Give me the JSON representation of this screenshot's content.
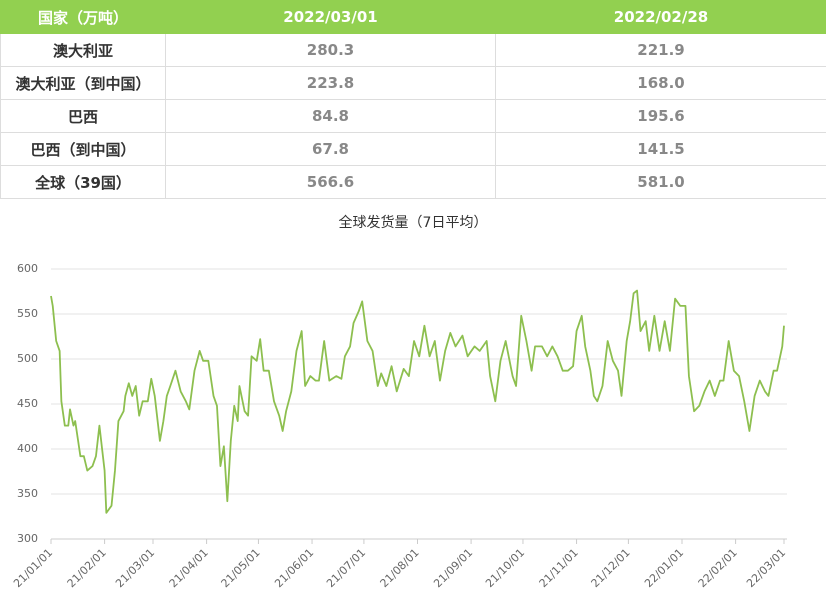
{
  "table": {
    "header": [
      "国家（万吨）",
      "2022/03/01",
      "2022/02/28"
    ],
    "rows": [
      [
        "澳大利亚",
        "280.3",
        "221.9"
      ],
      [
        "澳大利亚（到中国）",
        "223.8",
        "168.0"
      ],
      [
        "巴西",
        "84.8",
        "195.6"
      ],
      [
        "巴西（到中国）",
        "67.8",
        "141.5"
      ],
      [
        "全球（39国）",
        "566.6",
        "581.0"
      ]
    ]
  },
  "chart_data": {
    "type": "line",
    "title": "全球发货量（7日平均）",
    "ylim": [
      300,
      600
    ],
    "yticks": [
      300,
      350,
      400,
      450,
      500,
      550,
      600
    ],
    "grid": true,
    "xlim": [
      "21/01/01",
      "22/03/01"
    ],
    "xticks": [
      "21/01/01",
      "21/02/01",
      "21/03/01",
      "21/04/01",
      "21/05/01",
      "21/06/01",
      "21/07/01",
      "21/08/01",
      "21/09/01",
      "21/10/01",
      "21/11/01",
      "21/12/01",
      "22/01/01",
      "22/02/01",
      "22/03/01"
    ],
    "x": [
      "21/01/01",
      "21/01/02",
      "21/01/04",
      "21/01/06",
      "21/01/07",
      "21/01/09",
      "21/01/11",
      "21/01/12",
      "21/01/14",
      "21/01/15",
      "21/01/18",
      "21/01/20",
      "21/01/22",
      "21/01/25",
      "21/01/27",
      "21/01/29",
      "21/02/01",
      "21/02/02",
      "21/02/05",
      "21/02/07",
      "21/02/09",
      "21/02/12",
      "21/02/13",
      "21/02/15",
      "21/02/17",
      "21/02/19",
      "21/02/21",
      "21/02/23",
      "21/02/26",
      "21/02/28",
      "21/03/02",
      "21/03/05",
      "21/03/07",
      "21/03/09",
      "21/03/11",
      "21/03/14",
      "21/03/17",
      "21/03/20",
      "21/03/22",
      "21/03/25",
      "21/03/28",
      "21/03/30",
      "21/04/02",
      "21/04/05",
      "21/04/07",
      "21/04/09",
      "21/04/11",
      "21/04/13",
      "21/04/15",
      "21/04/17",
      "21/04/19",
      "21/04/20",
      "21/04/23",
      "21/04/25",
      "21/04/27",
      "21/04/30",
      "21/05/02",
      "21/05/04",
      "21/05/07",
      "21/05/10",
      "21/05/13",
      "21/05/15",
      "21/05/17",
      "21/05/20",
      "21/05/23",
      "21/05/26",
      "21/05/28",
      "21/05/31",
      "21/06/03",
      "21/06/05",
      "21/06/08",
      "21/06/11",
      "21/06/15",
      "21/06/18",
      "21/06/20",
      "21/06/23",
      "21/06/25",
      "21/06/28",
      "21/06/30",
      "21/07/03",
      "21/07/06",
      "21/07/09",
      "21/07/11",
      "21/07/14",
      "21/07/17",
      "21/07/20",
      "21/07/24",
      "21/07/27",
      "21/07/30",
      "21/08/02",
      "21/08/05",
      "21/08/08",
      "21/08/11",
      "21/08/14",
      "21/08/17",
      "21/08/20",
      "21/08/23",
      "21/08/27",
      "21/08/30",
      "21/09/03",
      "21/09/06",
      "21/09/10",
      "21/09/12",
      "21/09/15",
      "21/09/18",
      "21/09/21",
      "21/09/25",
      "21/09/27",
      "21/09/30",
      "21/10/03",
      "21/10/06",
      "21/10/08",
      "21/10/12",
      "21/10/15",
      "21/10/18",
      "21/10/21",
      "21/10/24",
      "21/10/27",
      "21/10/30",
      "21/11/01",
      "21/11/04",
      "21/11/06",
      "21/11/09",
      "21/11/11",
      "21/11/13",
      "21/11/16",
      "21/11/19",
      "21/11/22",
      "21/11/25",
      "21/11/27",
      "21/11/30",
      "21/12/02",
      "21/12/04",
      "21/12/06",
      "21/12/08",
      "21/12/11",
      "21/12/13",
      "21/12/16",
      "21/12/19",
      "21/12/22",
      "21/12/25",
      "21/12/28",
      "21/12/31",
      "22/01/03",
      "22/01/05",
      "22/01/08",
      "22/01/11",
      "22/01/14",
      "22/01/17",
      "22/01/20",
      "22/01/23",
      "22/01/25",
      "22/01/28",
      "22/01/31",
      "22/02/03",
      "22/02/06",
      "22/02/09",
      "22/02/12",
      "22/02/15",
      "22/02/18",
      "22/02/20",
      "22/02/23",
      "22/02/25",
      "22/02/28",
      "22/03/01"
    ],
    "series": [
      {
        "color": "#8dbf4f",
        "values": [
          570,
          559,
          520,
          509,
          453,
          426,
          426,
          444,
          426,
          431,
          392,
          392,
          376,
          381,
          392,
          426,
          376,
          329,
          337,
          376,
          431,
          442,
          459,
          473,
          459,
          470,
          437,
          453,
          453,
          478,
          459,
          409,
          431,
          459,
          470,
          487,
          464,
          453,
          444,
          487,
          509,
          498,
          498,
          459,
          448,
          381,
          403,
          342,
          409,
          448,
          431,
          470,
          442,
          437,
          503,
          498,
          522,
          487,
          487,
          453,
          437,
          420,
          442,
          464,
          509,
          531,
          470,
          481,
          476,
          476,
          520,
          476,
          481,
          478,
          503,
          514,
          540,
          553,
          564,
          520,
          509,
          470,
          484,
          470,
          492,
          464,
          489,
          481,
          520,
          503,
          537,
          503,
          520,
          476,
          509,
          529,
          514,
          526,
          503,
          514,
          509,
          520,
          481,
          453,
          498,
          520,
          481,
          470,
          548,
          520,
          487,
          514,
          514,
          503,
          514,
          503,
          487,
          487,
          492,
          531,
          548,
          514,
          487,
          459,
          453,
          470,
          520,
          498,
          487,
          459,
          520,
          542,
          573,
          576,
          531,
          542,
          509,
          548,
          509,
          542,
          509,
          567,
          559,
          559,
          481,
          442,
          448,
          464,
          476,
          459,
          476,
          476,
          520,
          487,
          481,
          453,
          420,
          459,
          476,
          464,
          459,
          487,
          487,
          514,
          537
        ]
      }
    ]
  }
}
